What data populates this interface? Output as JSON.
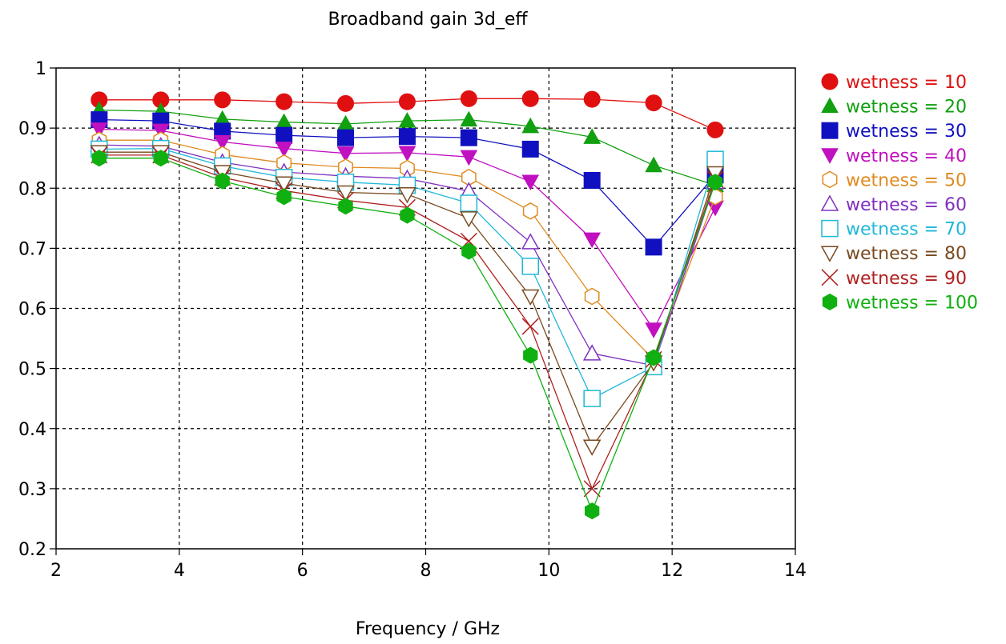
{
  "chart_data": {
    "type": "line",
    "title": "Broadband gain 3d_eff",
    "xlabel": "Frequency / GHz",
    "ylabel": "",
    "xlim": [
      2,
      14
    ],
    "ylim": [
      0.2,
      1
    ],
    "xticks": [
      2,
      4,
      6,
      8,
      10,
      12,
      14
    ],
    "xtick_labels": [
      "2",
      "4",
      "6",
      "8",
      "10",
      "12",
      "14"
    ],
    "yticks": [
      0.2,
      0.3,
      0.4,
      0.5,
      0.6,
      0.7,
      0.8,
      0.9,
      1
    ],
    "ytick_labels": [
      "0.2",
      "0.3",
      "0.4",
      "0.5",
      "0.6",
      "0.7",
      "0.8",
      "0.9",
      "1"
    ],
    "grid": true,
    "legend_position": "right",
    "x": [
      2.7,
      3.7,
      4.7,
      5.7,
      6.7,
      7.7,
      8.7,
      9.7,
      10.7,
      11.7,
      12.7
    ],
    "series": [
      {
        "name": "wetness = 10",
        "color": "#e01010",
        "marker": "circle-filled",
        "values": [
          0.947,
          0.947,
          0.947,
          0.944,
          0.941,
          0.944,
          0.949,
          0.949,
          0.948,
          0.942,
          0.897
        ]
      },
      {
        "name": "wetness = 20",
        "color": "#10a010",
        "marker": "triangle-up-filled",
        "values": [
          0.93,
          0.928,
          0.915,
          0.91,
          0.907,
          0.912,
          0.914,
          0.903,
          0.885,
          0.838,
          0.805
        ]
      },
      {
        "name": "wetness = 30",
        "color": "#1010c0",
        "marker": "square-filled",
        "values": [
          0.914,
          0.912,
          0.895,
          0.888,
          0.884,
          0.886,
          0.884,
          0.865,
          0.813,
          0.702,
          0.822
        ]
      },
      {
        "name": "wetness = 40",
        "color": "#c010c0",
        "marker": "triangle-down-filled",
        "values": [
          0.898,
          0.896,
          0.877,
          0.866,
          0.858,
          0.859,
          0.852,
          0.811,
          0.715,
          0.565,
          0.768
        ]
      },
      {
        "name": "wetness = 50",
        "color": "#e08a20",
        "marker": "hexagon-open",
        "values": [
          0.88,
          0.88,
          0.856,
          0.842,
          0.835,
          0.833,
          0.818,
          0.762,
          0.62,
          0.515,
          0.786
        ]
      },
      {
        "name": "wetness = 60",
        "color": "#8030c0",
        "marker": "triangle-up-open",
        "values": [
          0.872,
          0.87,
          0.843,
          0.827,
          0.82,
          0.816,
          0.795,
          0.71,
          0.525,
          0.505,
          0.81
        ]
      },
      {
        "name": "wetness = 70",
        "color": "#20b8d8",
        "marker": "square-open",
        "values": [
          0.865,
          0.866,
          0.837,
          0.818,
          0.81,
          0.805,
          0.775,
          0.67,
          0.45,
          0.503,
          0.848
        ]
      },
      {
        "name": "wetness = 80",
        "color": "#7a4a20",
        "marker": "triangle-down-open",
        "values": [
          0.86,
          0.86,
          0.827,
          0.808,
          0.793,
          0.79,
          0.75,
          0.62,
          0.37,
          0.51,
          0.825
        ]
      },
      {
        "name": "wetness = 90",
        "color": "#b02020",
        "marker": "x",
        "values": [
          0.855,
          0.855,
          0.818,
          0.796,
          0.78,
          0.768,
          0.712,
          0.57,
          0.3,
          0.515,
          0.815
        ]
      },
      {
        "name": "wetness = 100",
        "color": "#10b010",
        "marker": "hexagon-filled",
        "values": [
          0.85,
          0.85,
          0.812,
          0.786,
          0.77,
          0.755,
          0.695,
          0.522,
          0.263,
          0.518,
          0.81
        ]
      }
    ]
  }
}
